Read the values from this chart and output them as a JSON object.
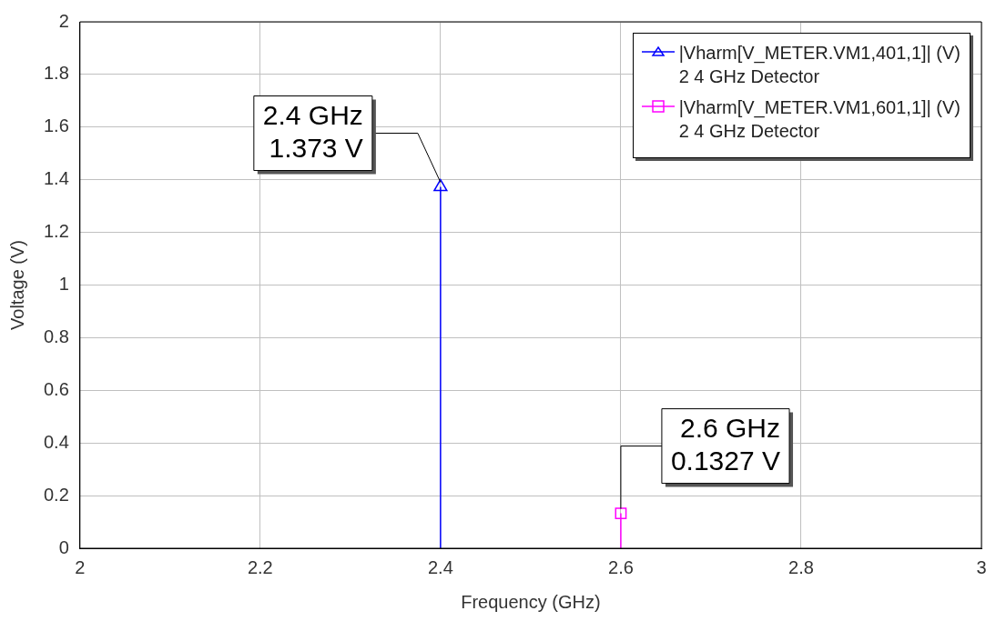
{
  "chart_data": {
    "type": "lollipop",
    "xlabel": "Frequency (GHz)",
    "ylabel": "Voltage (V)",
    "xlim": [
      2,
      3
    ],
    "xticks": [
      2,
      2.2,
      2.4,
      2.6,
      2.8,
      3
    ],
    "ylim": [
      0,
      2
    ],
    "yticks": [
      0,
      0.2,
      0.4,
      0.6,
      0.8,
      1,
      1.2,
      1.4,
      1.6,
      1.8,
      2
    ],
    "grid": true,
    "legend": "top right",
    "series": [
      {
        "name": "|Vharm[V_METER.VM1,401,1]| (V)\n2 4 GHz Detector",
        "color": "#0000ff",
        "marker": "triangle",
        "x": [
          2.4
        ],
        "values": [
          1.373
        ]
      },
      {
        "name": "|Vharm[V_METER.VM1,601,1]| (V)\n2 4 GHz Detector",
        "color": "#ff00ff",
        "marker": "square",
        "x": [
          2.6
        ],
        "values": [
          0.1327
        ]
      }
    ],
    "annotations": [
      {
        "text": "2.4 GHz\n1.373 V",
        "x": 2.4,
        "y": 1.373
      },
      {
        "text": "2.6 GHz\n0.1327 V",
        "x": 2.6,
        "y": 0.1327
      }
    ]
  }
}
